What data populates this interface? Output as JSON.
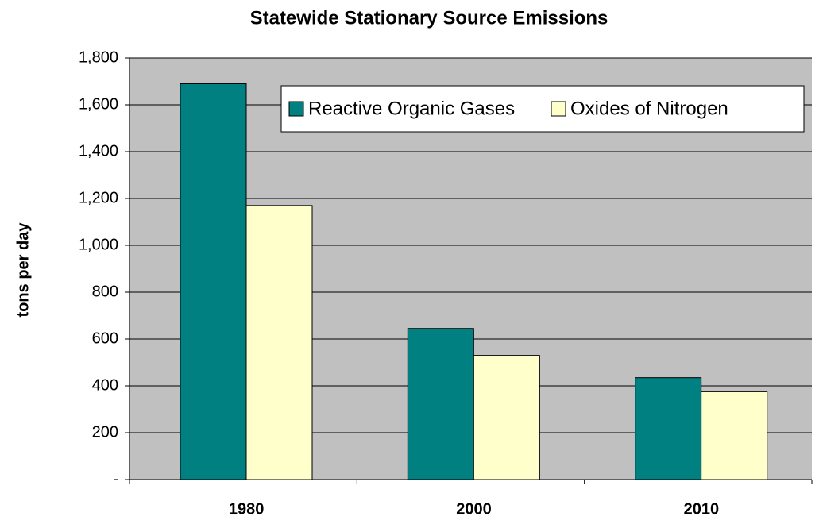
{
  "chart_data": {
    "type": "bar",
    "title": "Statewide Stationary Source Emissions",
    "y_label": "tons per day",
    "categories": [
      "1980",
      "2000",
      "2010"
    ],
    "series": [
      {
        "name": "Reactive Organic Gases",
        "color": "#008080",
        "values": [
          1690,
          645,
          435
        ]
      },
      {
        "name": "Oxides of Nitrogen",
        "color": "#FFFFCC",
        "values": [
          1170,
          530,
          375
        ]
      }
    ],
    "ylim": [
      0,
      1800
    ],
    "yticks": [
      {
        "value": 0,
        "label": "-"
      },
      200,
      400,
      600,
      800,
      {
        "value": 1000,
        "label": "1,000"
      },
      {
        "value": 1200,
        "label": "1,200"
      },
      {
        "value": 1400,
        "label": "1,400"
      },
      {
        "value": 1600,
        "label": "1,600"
      },
      {
        "value": 1800,
        "label": "1,800"
      }
    ],
    "grid": true,
    "legend": "top-right",
    "plot_background": "#C0C0C0"
  }
}
